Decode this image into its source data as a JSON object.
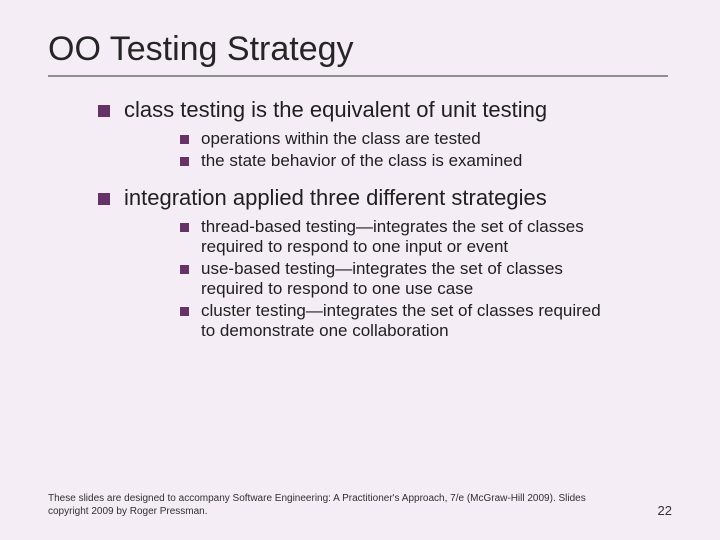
{
  "title": "OO Testing Strategy",
  "bullets": {
    "item1": "class testing is the equivalent of unit testing",
    "item1_sub1": "operations within the class are tested",
    "item1_sub2": "the state behavior of the class is examined",
    "item2": "integration applied three different strategies",
    "item2_sub1": "thread-based testing—integrates the set of classes required to respond to one input or event",
    "item2_sub2": "use-based testing—integrates the set of classes required to respond to one use case",
    "item2_sub3": "cluster testing—integrates the set of classes required to demonstrate one collaboration"
  },
  "footer": "These slides are designed to accompany Software Engineering: A Practitioner's Approach, 7/e (McGraw-Hill 2009). Slides copyright 2009 by Roger Pressman.",
  "page_number": "22",
  "colors": {
    "background": "#f5edf5",
    "bullet": "#663366",
    "text": "#202020",
    "underline": "#909090"
  },
  "fonts": {
    "title_size": 34,
    "level1_size": 22,
    "level2_size": 17,
    "footer_size": 10
  }
}
